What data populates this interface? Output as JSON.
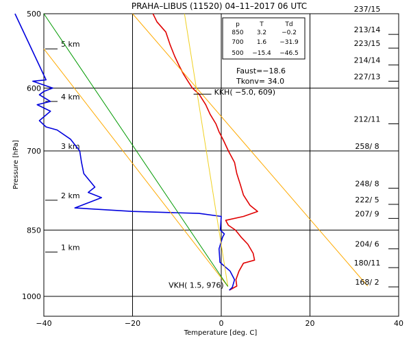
{
  "chart_data": {
    "type": "line",
    "title": "PRAHA–LIBUS (11520)   04–11–2017  06  UTC",
    "xlabel": "Temperature [deg. C]",
    "ylabel": "Pressure [hPa]",
    "xlim": [
      -40,
      40
    ],
    "ylim": [
      500,
      1000
    ],
    "y_scale": "log",
    "x_ticks": [
      "−40",
      "−20",
      "0",
      "20",
      "40"
    ],
    "y_ticks": [
      {
        "p": 500,
        "label": "500"
      },
      {
        "p": 600,
        "label": "600"
      },
      {
        "p": 700,
        "label": "700"
      },
      {
        "p": 850,
        "label": "850"
      },
      {
        "p": 1000,
        "label": "1000"
      }
    ],
    "grid": true,
    "height_marks": [
      {
        "label": "5 km",
        "p": 545
      },
      {
        "label": "4 km",
        "p": 620
      },
      {
        "label": "3 km",
        "p": 700
      },
      {
        "label": "2 km",
        "p": 790
      },
      {
        "label": "1 km",
        "p": 897
      }
    ],
    "table": {
      "headers": [
        "p",
        "T",
        "Td"
      ],
      "rows": [
        [
          "850",
          "3.2",
          "−0.2"
        ],
        [
          "700",
          "1.6",
          "−31.9"
        ],
        [
          "500",
          "−15.4",
          "−46.5"
        ]
      ]
    },
    "faust": "Faust=−18.6",
    "tkonv": "Tkonv= 34.0",
    "kkh_label": "KKH( −5.0, 609)",
    "kkh_point": {
      "t": -5.0,
      "p": 609
    },
    "vkh_label": "VKH(  1.5, 976)",
    "vkh_point": {
      "t": 1.5,
      "p": 976
    },
    "wind_labels": [
      {
        "p": 500,
        "label": "237/15"
      },
      {
        "p": 526,
        "label": "213/14"
      },
      {
        "p": 544,
        "label": "223/15"
      },
      {
        "p": 567,
        "label": "214/14"
      },
      {
        "p": 590,
        "label": "227/13"
      },
      {
        "p": 655,
        "label": "212/11"
      },
      {
        "p": 700,
        "label": "258/ 8"
      },
      {
        "p": 767,
        "label": "248/ 8"
      },
      {
        "p": 798,
        "label": "222/ 5"
      },
      {
        "p": 826,
        "label": "207/ 9"
      },
      {
        "p": 890,
        "label": "204/ 6"
      },
      {
        "p": 932,
        "label": "180/11"
      },
      {
        "p": 977,
        "label": "168/ 2"
      }
    ],
    "series": [
      {
        "key": "temperature",
        "color": "#e00000",
        "points": [
          [
            -15.4,
            500
          ],
          [
            -14.5,
            510
          ],
          [
            -12.5,
            523
          ],
          [
            -11.5,
            540
          ],
          [
            -10.5,
            555
          ],
          [
            -9.5,
            568
          ],
          [
            -8.5,
            580
          ],
          [
            -7.5,
            590
          ],
          [
            -6.5,
            600
          ],
          [
            -5,
            609
          ],
          [
            -3.5,
            625
          ],
          [
            -2.5,
            640
          ],
          [
            -1.2,
            655
          ],
          [
            -0.5,
            668
          ],
          [
            0.5,
            682
          ],
          [
            1.6,
            700
          ],
          [
            3,
            720
          ],
          [
            3.5,
            740
          ],
          [
            4.3,
            760
          ],
          [
            5,
            780
          ],
          [
            6.5,
            800
          ],
          [
            8.2,
            812
          ],
          [
            5,
            822
          ],
          [
            1,
            830
          ],
          [
            1.6,
            840
          ],
          [
            3.2,
            850
          ],
          [
            4.5,
            865
          ],
          [
            6,
            880
          ],
          [
            7.2,
            900
          ],
          [
            7.5,
            915
          ],
          [
            5,
            922
          ],
          [
            4,
            940
          ],
          [
            3.3,
            960
          ],
          [
            3.5,
            975
          ],
          [
            1.8,
            985
          ]
        ]
      },
      {
        "key": "dewpoint",
        "color": "#0000dd",
        "points": [
          [
            -46.5,
            500
          ],
          [
            -39.5,
            588
          ],
          [
            -42.5,
            590
          ],
          [
            -38,
            600
          ],
          [
            -40,
            605
          ],
          [
            -41,
            610
          ],
          [
            -38.5,
            620
          ],
          [
            -41.5,
            625
          ],
          [
            -38.5,
            635
          ],
          [
            -41,
            650
          ],
          [
            -39.5,
            660
          ],
          [
            -37,
            665
          ],
          [
            -34,
            680
          ],
          [
            -31.9,
            700
          ],
          [
            -31.5,
            720
          ],
          [
            -31,
            740
          ],
          [
            -28.5,
            765
          ],
          [
            -30,
            775
          ],
          [
            -27,
            785
          ],
          [
            -30,
            795
          ],
          [
            -31.5,
            800
          ],
          [
            -33,
            805
          ],
          [
            -20,
            812
          ],
          [
            -5,
            816
          ],
          [
            0,
            822
          ],
          [
            -0.2,
            850
          ],
          [
            0.7,
            858
          ],
          [
            0.3,
            865
          ],
          [
            -0.5,
            890
          ],
          [
            -0.3,
            920
          ],
          [
            2,
            940
          ],
          [
            3,
            960
          ],
          [
            2.5,
            978
          ],
          [
            1.8,
            985
          ]
        ]
      },
      {
        "key": "yellow-line",
        "color": "#f0d020",
        "points": [
          [
            -8.3,
            500
          ],
          [
            1.5,
            976
          ]
        ]
      },
      {
        "key": "orange-line-left",
        "color": "#ffaa00",
        "points": [
          [
            -40,
            545
          ],
          [
            1.5,
            976
          ]
        ]
      },
      {
        "key": "orange-line-right",
        "color": "#ffaa00",
        "points": [
          [
            -20,
            500
          ],
          [
            33,
            975
          ]
        ]
      },
      {
        "key": "green-line",
        "color": "#009900",
        "points": [
          [
            -40,
            500
          ],
          [
            1.5,
            976
          ]
        ]
      }
    ]
  }
}
